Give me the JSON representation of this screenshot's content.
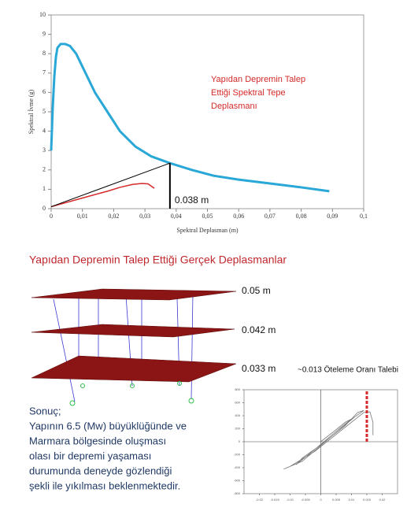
{
  "chart_data": [
    {
      "type": "line",
      "x_label": "Spektral Deplasman (m)",
      "y_label": "Spektral İvme (g)",
      "xlim": [
        0,
        0.1
      ],
      "ylim": [
        0,
        10
      ],
      "xticks": [
        0,
        {
          "value": 0.01,
          "label": "0,01"
        },
        {
          "value": 0.02,
          "label": "0,02"
        },
        {
          "value": 0.03,
          "label": "0,03"
        },
        {
          "value": 0.04,
          "label": "0,04"
        },
        {
          "value": 0.05,
          "label": "0,05"
        },
        {
          "value": 0.06,
          "label": "0,06"
        },
        {
          "value": 0.07,
          "label": "0,07"
        },
        {
          "value": 0.08,
          "label": "0,08"
        },
        {
          "value": 0.09,
          "label": "0,09"
        },
        {
          "value": 0.1,
          "label": "0,1"
        }
      ],
      "yticks": [
        0,
        1,
        2,
        3,
        4,
        5,
        6,
        7,
        8,
        9,
        10
      ],
      "series": [
        {
          "color": "#29a8d8",
          "line_width": 3,
          "x": [
            0,
            0.0005,
            0.001,
            0.0015,
            0.002,
            0.003,
            0.0045,
            0.006,
            0.008,
            0.011,
            0.014,
            0.018,
            0.022,
            0.027,
            0.032,
            0.038,
            0.045,
            0.052,
            0.06,
            0.07,
            0.08,
            0.089
          ],
          "values": [
            3,
            5.2,
            6.8,
            7.8,
            8.3,
            8.5,
            8.5,
            8.4,
            8.0,
            7.0,
            6.0,
            5.0,
            4.0,
            3.2,
            2.7,
            2.35,
            2.0,
            1.7,
            1.5,
            1.3,
            1.1,
            0.9
          ]
        },
        {
          "color": "#d42a2a",
          "line_width": 1.5,
          "x": [
            0,
            0.01,
            0.018,
            0.022,
            0.026,
            0.029,
            0.031,
            0.033
          ],
          "values": [
            0.1,
            0.55,
            0.9,
            1.1,
            1.25,
            1.3,
            1.28,
            1.05
          ]
        },
        {
          "color": "#000000",
          "line_width": 1,
          "x": [
            0,
            0.038
          ],
          "values": [
            0.1,
            2.35
          ]
        },
        {
          "color": "#000000",
          "line_width": 2,
          "x": [
            0.038,
            0.038
          ],
          "values": [
            2.35,
            0
          ]
        }
      ],
      "annotations": [
        "0.038 m"
      ],
      "note_lines": [
        "Yapıdan Depremin Talep",
        "Ettiği Spektral Tepe",
        "Deplasmanı"
      ]
    },
    {
      "type": "line",
      "xlim": [
        -0.025,
        0.025
      ],
      "ylim": [
        -800,
        800
      ],
      "xticks": [
        -0.02,
        -0.015,
        -0.01,
        -0.005,
        0,
        0.005,
        0.01,
        0.015,
        0.02
      ],
      "yticks": [
        -800,
        -600,
        -400,
        -200,
        0,
        200,
        400,
        600,
        800
      ],
      "series": [
        {
          "color": "#777777",
          "line_width": 0.8,
          "x": [
            0,
            0.004,
            0.008,
            0.01,
            0.006,
            -0.004,
            -0.008,
            -0.006,
            0,
            0.008,
            0.012,
            0.014,
            0.011,
            0.004,
            -0.006,
            -0.012,
            -0.01,
            -0.002,
            0.006,
            0.014,
            0.016,
            0.017,
            0.017
          ],
          "values": [
            0,
            150,
            300,
            350,
            200,
            -200,
            -350,
            -250,
            -50,
            250,
            450,
            480,
            380,
            100,
            -300,
            -420,
            -380,
            -150,
            150,
            450,
            460,
            300,
            100
          ]
        },
        {
          "color": "#d42a2a",
          "line_width": 3,
          "dash": true,
          "x": [
            0.015,
            0.015
          ],
          "values": [
            0,
            780
          ]
        }
      ]
    }
  ],
  "section_title": "Yapıdan Depremin Talep Ettiği Gerçek Deplasmanlar",
  "floors": [
    "0.05 m",
    "0.042 m",
    "0.033 m"
  ],
  "drift_note": "~0.013 Öteleme Oranı Talebi",
  "conclusion": [
    "Sonuç;",
    "Yapının 6.5 (Mw) büyüklüğünde ve",
    "Marmara bölgesinde oluşması",
    "olası bir depremi yaşaması",
    "durumunda deneyde gözlendiği",
    "şekli ile yıkılması beklenmektedir."
  ]
}
